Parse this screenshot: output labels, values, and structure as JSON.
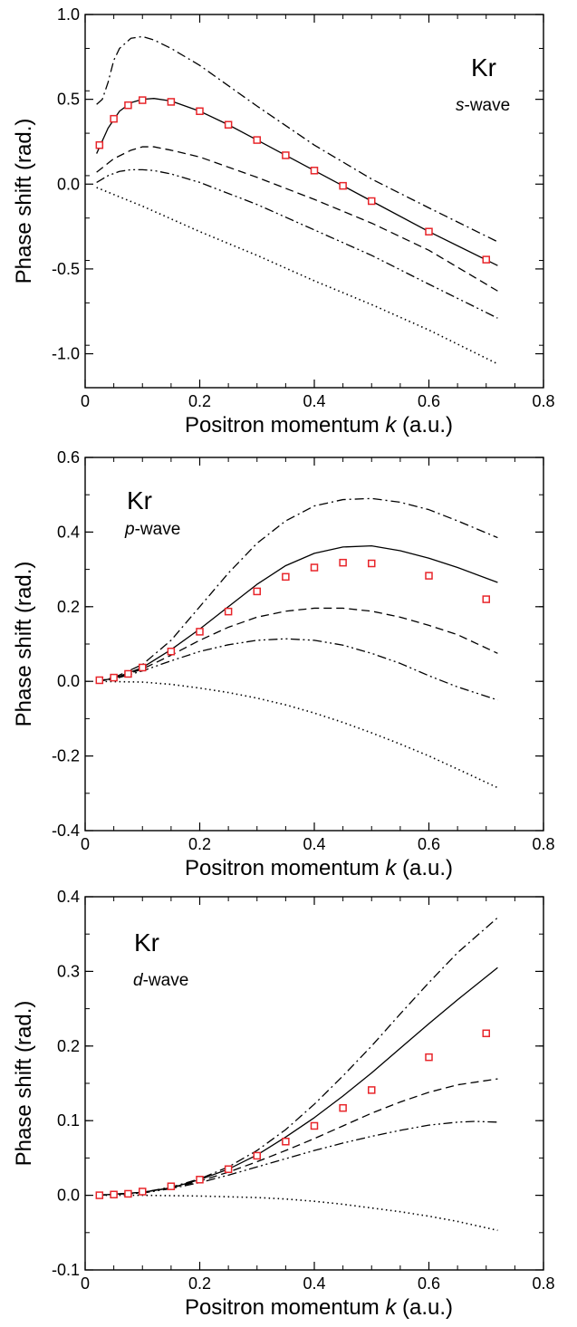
{
  "chart_data": [
    {
      "type": "line",
      "title": "Kr",
      "subtitle_italic": "s",
      "subtitle_rest": "-wave",
      "xlabel_pre": "Positron momentum ",
      "xlabel_italic": "k",
      "xlabel_post": " (a.u.)",
      "ylabel": "Phase shift (rad.)",
      "xlim": [
        0,
        0.8
      ],
      "ylim": [
        -1.2,
        1.0
      ],
      "xticks": [
        0,
        0.2,
        0.4,
        0.6,
        0.8
      ],
      "xtick_labels": [
        "0",
        "0.2",
        "0.4",
        "0.6",
        "0.8"
      ],
      "yticks": [
        -1.0,
        -0.5,
        0.0,
        0.5,
        1.0
      ],
      "ytick_labels": [
        "-1.0",
        "-0.5",
        "0.0",
        "0.5",
        "1.0"
      ],
      "markers": {
        "color": "#e8252a",
        "x": [
          0.025,
          0.05,
          0.075,
          0.1,
          0.15,
          0.2,
          0.25,
          0.3,
          0.35,
          0.4,
          0.45,
          0.5,
          0.6,
          0.7
        ],
        "y": [
          0.23,
          0.385,
          0.465,
          0.495,
          0.485,
          0.43,
          0.35,
          0.26,
          0.17,
          0.08,
          -0.01,
          -0.1,
          -0.28,
          -0.445
        ]
      },
      "series": [
        {
          "style": "dashdot",
          "x": [
            0.02,
            0.03,
            0.04,
            0.05,
            0.06,
            0.08,
            0.1,
            0.12,
            0.15,
            0.2,
            0.3,
            0.4,
            0.5,
            0.6,
            0.72
          ],
          "y": [
            0.47,
            0.5,
            0.6,
            0.73,
            0.8,
            0.86,
            0.87,
            0.85,
            0.8,
            0.7,
            0.46,
            0.23,
            0.03,
            -0.14,
            -0.34
          ]
        },
        {
          "style": "solid",
          "x": [
            0.02,
            0.04,
            0.06,
            0.08,
            0.1,
            0.12,
            0.15,
            0.2,
            0.25,
            0.3,
            0.35,
            0.4,
            0.45,
            0.5,
            0.6,
            0.72
          ],
          "y": [
            0.18,
            0.33,
            0.43,
            0.48,
            0.5,
            0.505,
            0.49,
            0.43,
            0.35,
            0.26,
            0.17,
            0.08,
            -0.01,
            -0.1,
            -0.28,
            -0.48
          ]
        },
        {
          "style": "dashed",
          "x": [
            0.02,
            0.05,
            0.08,
            0.1,
            0.12,
            0.15,
            0.2,
            0.3,
            0.4,
            0.5,
            0.6,
            0.72
          ],
          "y": [
            0.07,
            0.15,
            0.2,
            0.22,
            0.22,
            0.2,
            0.16,
            0.04,
            -0.09,
            -0.23,
            -0.39,
            -0.63
          ]
        },
        {
          "style": "dashdotdot",
          "x": [
            0.02,
            0.04,
            0.06,
            0.08,
            0.1,
            0.12,
            0.15,
            0.2,
            0.3,
            0.4,
            0.5,
            0.6,
            0.72
          ],
          "y": [
            0.01,
            0.05,
            0.075,
            0.085,
            0.085,
            0.08,
            0.06,
            0.01,
            -0.12,
            -0.27,
            -0.42,
            -0.59,
            -0.79
          ]
        },
        {
          "style": "dotted",
          "x": [
            0.02,
            0.1,
            0.2,
            0.3,
            0.4,
            0.5,
            0.6,
            0.72
          ],
          "y": [
            -0.02,
            -0.13,
            -0.28,
            -0.42,
            -0.57,
            -0.71,
            -0.86,
            -1.06
          ]
        }
      ]
    },
    {
      "type": "line",
      "title": "Kr",
      "subtitle_italic": "p",
      "subtitle_rest": "-wave",
      "xlabel_pre": "Positron momentum ",
      "xlabel_italic": "k",
      "xlabel_post": " (a.u.)",
      "ylabel": "Phase shift (rad.)",
      "xlim": [
        0,
        0.8
      ],
      "ylim": [
        -0.4,
        0.6
      ],
      "xticks": [
        0,
        0.2,
        0.4,
        0.6,
        0.8
      ],
      "xtick_labels": [
        "0",
        "0.2",
        "0.4",
        "0.6",
        "0.8"
      ],
      "yticks": [
        -0.4,
        -0.2,
        0.0,
        0.2,
        0.4,
        0.6
      ],
      "ytick_labels": [
        "-0.4",
        "-0.2",
        "0.0",
        "0.2",
        "0.4",
        "0.6"
      ],
      "markers": {
        "color": "#e8252a",
        "x": [
          0.025,
          0.05,
          0.075,
          0.1,
          0.15,
          0.2,
          0.25,
          0.3,
          0.35,
          0.4,
          0.45,
          0.5,
          0.6,
          0.7
        ],
        "y": [
          0.003,
          0.01,
          0.02,
          0.037,
          0.08,
          0.133,
          0.187,
          0.241,
          0.28,
          0.305,
          0.318,
          0.316,
          0.283,
          0.22
        ]
      },
      "series": [
        {
          "style": "dashdot",
          "x": [
            0.02,
            0.05,
            0.1,
            0.15,
            0.2,
            0.25,
            0.3,
            0.35,
            0.4,
            0.45,
            0.5,
            0.55,
            0.6,
            0.65,
            0.72
          ],
          "y": [
            0.0,
            0.01,
            0.045,
            0.11,
            0.2,
            0.29,
            0.37,
            0.43,
            0.47,
            0.487,
            0.49,
            0.48,
            0.46,
            0.43,
            0.385
          ]
        },
        {
          "style": "solid",
          "x": [
            0.02,
            0.05,
            0.1,
            0.15,
            0.2,
            0.25,
            0.3,
            0.35,
            0.4,
            0.45,
            0.5,
            0.55,
            0.6,
            0.65,
            0.72
          ],
          "y": [
            0.0,
            0.008,
            0.037,
            0.085,
            0.14,
            0.2,
            0.26,
            0.31,
            0.343,
            0.36,
            0.363,
            0.35,
            0.33,
            0.305,
            0.265
          ]
        },
        {
          "style": "dashed",
          "x": [
            0.02,
            0.05,
            0.1,
            0.15,
            0.2,
            0.25,
            0.3,
            0.35,
            0.4,
            0.45,
            0.5,
            0.55,
            0.6,
            0.65,
            0.72
          ],
          "y": [
            0.0,
            0.007,
            0.033,
            0.07,
            0.11,
            0.145,
            0.172,
            0.188,
            0.196,
            0.196,
            0.188,
            0.172,
            0.15,
            0.125,
            0.075
          ]
        },
        {
          "style": "dashdotdot",
          "x": [
            0.02,
            0.05,
            0.1,
            0.15,
            0.2,
            0.25,
            0.3,
            0.35,
            0.4,
            0.45,
            0.5,
            0.55,
            0.6,
            0.65,
            0.72
          ],
          "y": [
            0.0,
            0.006,
            0.028,
            0.055,
            0.08,
            0.098,
            0.11,
            0.114,
            0.11,
            0.097,
            0.075,
            0.048,
            0.015,
            -0.015,
            -0.05
          ]
        },
        {
          "style": "dotted",
          "x": [
            0.02,
            0.1,
            0.15,
            0.2,
            0.25,
            0.3,
            0.35,
            0.4,
            0.45,
            0.5,
            0.55,
            0.6,
            0.65,
            0.72
          ],
          "y": [
            0.0,
            -0.002,
            -0.008,
            -0.018,
            -0.03,
            -0.045,
            -0.063,
            -0.085,
            -0.11,
            -0.138,
            -0.168,
            -0.2,
            -0.235,
            -0.285
          ]
        }
      ]
    },
    {
      "type": "line",
      "title": "Kr",
      "subtitle_italic": "d",
      "subtitle_rest": "-wave",
      "xlabel_pre": "Positron momentum ",
      "xlabel_italic": "k",
      "xlabel_post": " (a.u.)",
      "ylabel": "Phase shift (rad.)",
      "xlim": [
        0,
        0.8
      ],
      "ylim": [
        -0.1,
        0.4
      ],
      "xticks": [
        0,
        0.2,
        0.4,
        0.6,
        0.8
      ],
      "xtick_labels": [
        "0",
        "0.2",
        "0.4",
        "0.6",
        "0.8"
      ],
      "yticks": [
        -0.1,
        0.0,
        0.1,
        0.2,
        0.3,
        0.4
      ],
      "ytick_labels": [
        "-0.1",
        "0.0",
        "0.1",
        "0.2",
        "0.3",
        "0.4"
      ],
      "markers": {
        "color": "#e8252a",
        "x": [
          0.025,
          0.05,
          0.075,
          0.1,
          0.15,
          0.2,
          0.25,
          0.3,
          0.35,
          0.4,
          0.45,
          0.5,
          0.6,
          0.7
        ],
        "y": [
          0.0,
          0.001,
          0.002,
          0.005,
          0.012,
          0.021,
          0.035,
          0.053,
          0.072,
          0.093,
          0.117,
          0.141,
          0.185,
          0.217
        ]
      },
      "series": [
        {
          "style": "dashdot",
          "x": [
            0.02,
            0.1,
            0.15,
            0.2,
            0.25,
            0.3,
            0.35,
            0.4,
            0.45,
            0.5,
            0.55,
            0.6,
            0.65,
            0.72
          ],
          "y": [
            0.0,
            0.004,
            0.011,
            0.022,
            0.038,
            0.06,
            0.088,
            0.122,
            0.16,
            0.2,
            0.243,
            0.285,
            0.325,
            0.372
          ]
        },
        {
          "style": "solid",
          "x": [
            0.02,
            0.1,
            0.15,
            0.2,
            0.25,
            0.3,
            0.35,
            0.4,
            0.45,
            0.5,
            0.55,
            0.6,
            0.65,
            0.72
          ],
          "y": [
            0.0,
            0.004,
            0.01,
            0.021,
            0.035,
            0.054,
            0.078,
            0.104,
            0.133,
            0.164,
            0.197,
            0.23,
            0.262,
            0.305
          ]
        },
        {
          "style": "dashed",
          "x": [
            0.02,
            0.1,
            0.15,
            0.2,
            0.25,
            0.3,
            0.35,
            0.4,
            0.45,
            0.5,
            0.55,
            0.6,
            0.65,
            0.72
          ],
          "y": [
            0.0,
            0.004,
            0.01,
            0.019,
            0.031,
            0.045,
            0.06,
            0.076,
            0.093,
            0.11,
            0.125,
            0.138,
            0.148,
            0.156
          ]
        },
        {
          "style": "dashdotdot",
          "x": [
            0.02,
            0.1,
            0.15,
            0.2,
            0.25,
            0.3,
            0.35,
            0.4,
            0.45,
            0.5,
            0.55,
            0.6,
            0.65,
            0.68,
            0.72
          ],
          "y": [
            0.0,
            0.003,
            0.009,
            0.017,
            0.027,
            0.038,
            0.049,
            0.06,
            0.07,
            0.079,
            0.087,
            0.094,
            0.098,
            0.099,
            0.098
          ]
        },
        {
          "style": "dotted",
          "x": [
            0.02,
            0.1,
            0.2,
            0.3,
            0.35,
            0.4,
            0.45,
            0.5,
            0.55,
            0.6,
            0.65,
            0.72
          ],
          "y": [
            0.0,
            0.0,
            -0.001,
            -0.003,
            -0.005,
            -0.008,
            -0.012,
            -0.017,
            -0.022,
            -0.028,
            -0.035,
            -0.047
          ]
        }
      ]
    }
  ]
}
